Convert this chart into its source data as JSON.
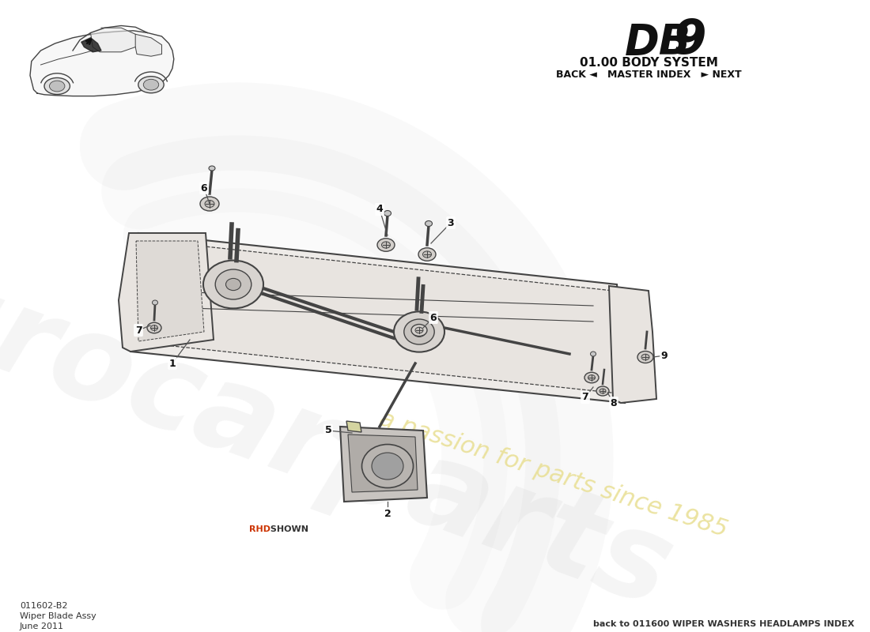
{
  "title_system": "01.00 BODY SYSTEM",
  "title_nav": "BACK ◄   MASTER INDEX   ► NEXT",
  "part_number": "011602-B2",
  "part_name": "Wiper Blade Assy",
  "date": "June 2011",
  "footer_link": "back to 011600 WIPER WASHERS HEADLAMPS INDEX",
  "rhd_label": "RHD SHOWN",
  "bg_color": "#ffffff",
  "line_color": "#444444",
  "wm_grey": "#c8c8c8",
  "wm_yellow": "#e8de90"
}
